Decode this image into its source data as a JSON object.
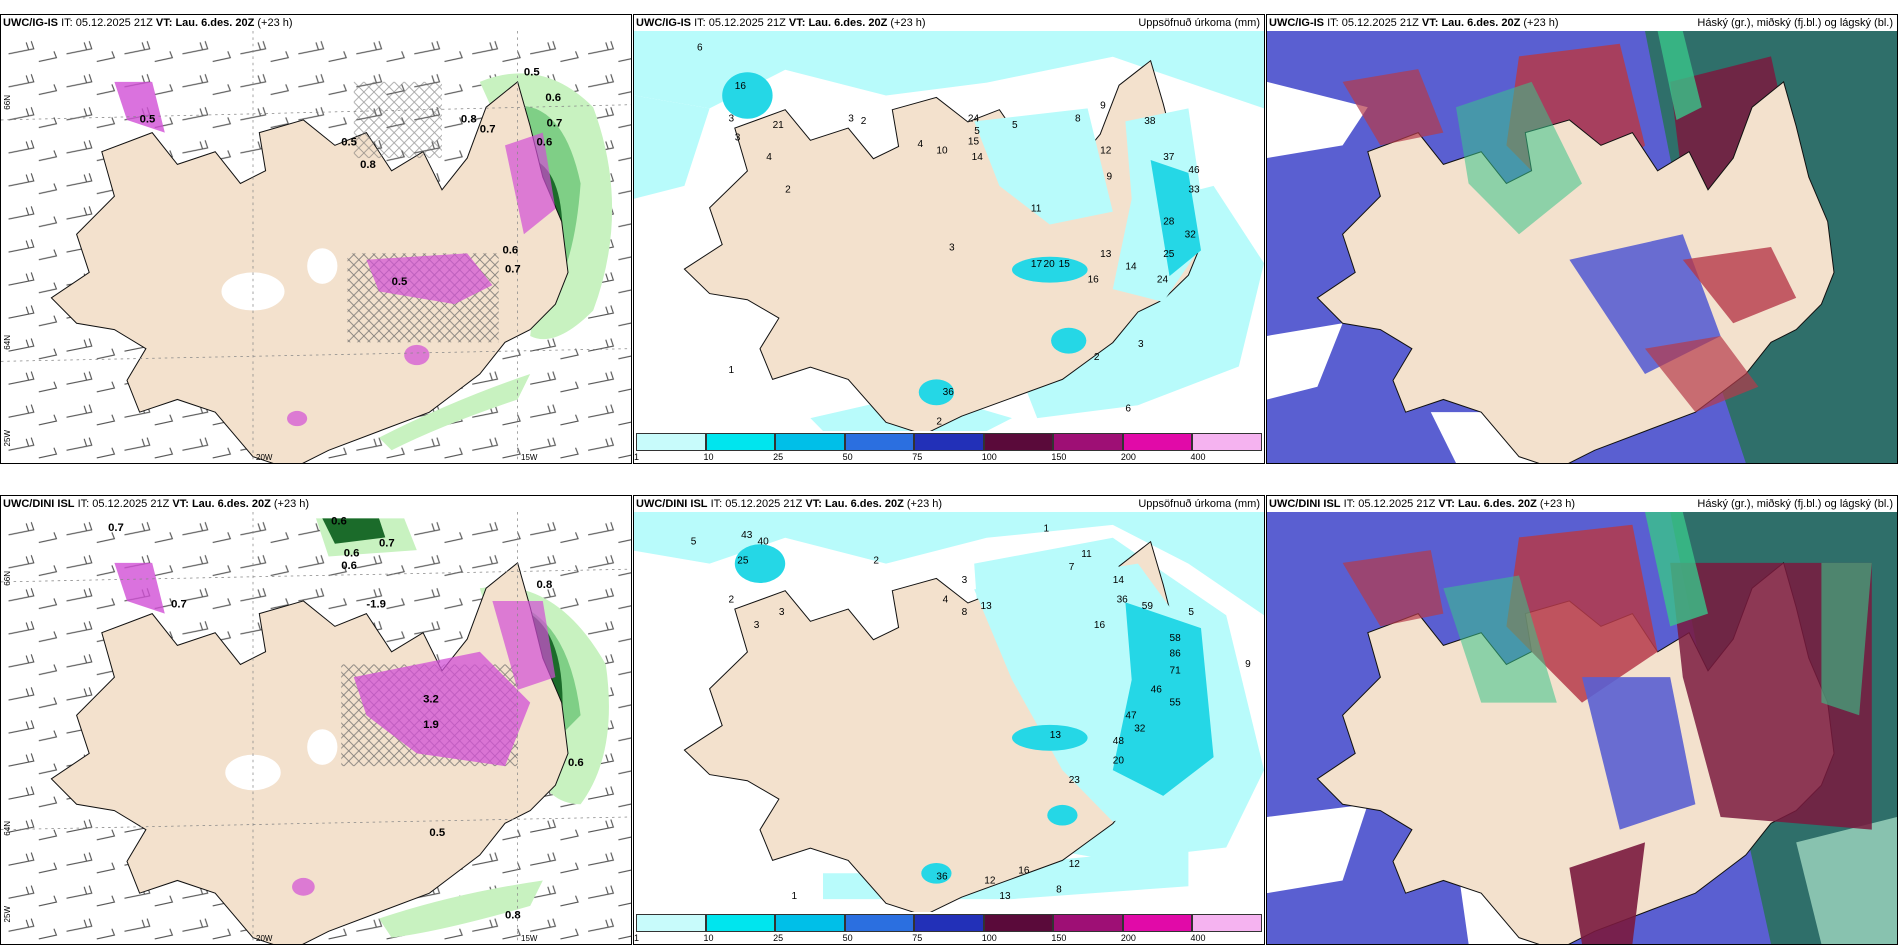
{
  "time_header": {
    "it_label": "IT:",
    "it_value": "05.12.2025 21Z",
    "vt_label": "VT:",
    "vt_value": "Lau. 6.des. 20Z",
    "lead": "(+23 h)"
  },
  "rows": [
    {
      "model": "UWC/IG-IS"
    },
    {
      "model": "UWC/DINI ISL"
    }
  ],
  "precip_title": "Uppsöfnuð úrkoma (mm)",
  "cloud_title": "Háský (gr.), miðský (fj.bl.) og lágský (bl.)",
  "colorbar": {
    "ticks": [
      "1",
      "10",
      "25",
      "50",
      "75",
      "100",
      "150",
      "200",
      "400"
    ],
    "colors": [
      "#c8fbfb",
      "#00e5ee",
      "#00bfe8",
      "#2b6fe0",
      "#2230b8",
      "#5a0a3a",
      "#9e0f75",
      "#e10aa8",
      "#f5b3f0"
    ]
  },
  "axis_labels": {
    "lat66": "66N",
    "lat64": "64N",
    "lon25": "25W",
    "lon20": "20W",
    "lon15": "15W"
  },
  "colors": {
    "land": "#f3e1cd",
    "precip_light": "#b8fbfb",
    "precip_mid": "#25d7e6",
    "green_light": "#c8f2c0",
    "green_mid": "#7fcf86",
    "green_dark": "#1b6b2a",
    "magenta": "#d14fd6",
    "cloud_blue": "#5a5fd1",
    "cloud_teal": "#2f6f6a",
    "cloud_red": "#b53a4a",
    "cloud_maroon": "#7a1a3e",
    "cloud_green": "#39c48a"
  },
  "panel_a_top": {
    "labels": [
      "0.5",
      "0.6",
      "0.7",
      "0.6",
      "0.8",
      "0.7",
      "0.5",
      "0.8",
      "0.7",
      "0.6",
      "0.5",
      "0.5"
    ]
  },
  "panel_a_bottom": {
    "labels": [
      "0.6",
      "0.6",
      "0.6",
      "0.7",
      "0.7",
      "0.7",
      "-1.9",
      "3.2",
      "1.9",
      "0.8",
      "0.6",
      "0.8",
      "0.5"
    ]
  },
  "panel_b_top": {
    "numbers": [
      "6",
      "16",
      "3",
      "3",
      "21",
      "4",
      "2",
      "3",
      "2",
      "4",
      "10",
      "5",
      "24",
      "15",
      "14",
      "5",
      "8",
      "9",
      "11",
      "9",
      "12",
      "38",
      "37",
      "46",
      "33",
      "28",
      "32",
      "25",
      "13",
      "17",
      "20",
      "15",
      "14",
      "24",
      "16",
      "3",
      "2",
      "3",
      "6",
      "1",
      "2",
      "36"
    ]
  },
  "panel_b_bottom": {
    "numbers": [
      "5",
      "43",
      "25",
      "40",
      "2",
      "3",
      "3",
      "4",
      "8",
      "13",
      "11",
      "14",
      "36",
      "16",
      "59",
      "58",
      "86",
      "71",
      "46",
      "55",
      "47",
      "32",
      "48",
      "20",
      "23",
      "13",
      "16",
      "12",
      "13",
      "8",
      "12",
      "1",
      "36",
      "2",
      "3",
      "5",
      "1",
      "9",
      "7"
    ]
  }
}
